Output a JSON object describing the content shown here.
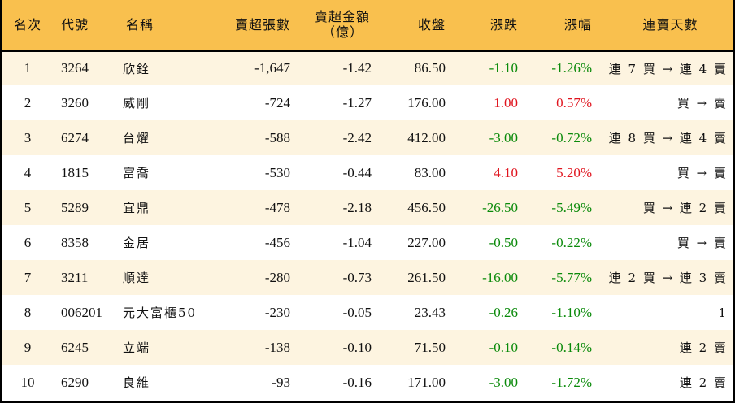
{
  "table": {
    "headers": {
      "rank": "名次",
      "code": "代號",
      "name": "名稱",
      "net_sell_shares": "賣超張數",
      "net_sell_amount_line1": "賣超金額",
      "net_sell_amount_line2": "（億）",
      "close": "收盤",
      "change": "漲跌",
      "change_pct": "漲幅",
      "streak": "連賣天數"
    },
    "rows": [
      {
        "rank": "1",
        "code": "3264",
        "name": "欣銓",
        "shares": "-1,647",
        "amount": "-1.42",
        "close": "86.50",
        "change": "-1.10",
        "pct": "-1.26%",
        "dir": "down",
        "streak": "連 7 買 → 連 4 賣"
      },
      {
        "rank": "2",
        "code": "3260",
        "name": "威剛",
        "shares": "-724",
        "amount": "-1.27",
        "close": "176.00",
        "change": "1.00",
        "pct": "0.57%",
        "dir": "up",
        "streak": "買 → 賣"
      },
      {
        "rank": "3",
        "code": "6274",
        "name": "台燿",
        "shares": "-588",
        "amount": "-2.42",
        "close": "412.00",
        "change": "-3.00",
        "pct": "-0.72%",
        "dir": "down",
        "streak": "連 8 買 → 連 4 賣"
      },
      {
        "rank": "4",
        "code": "1815",
        "name": "富喬",
        "shares": "-530",
        "amount": "-0.44",
        "close": "83.00",
        "change": "4.10",
        "pct": "5.20%",
        "dir": "up",
        "streak": "買 → 賣"
      },
      {
        "rank": "5",
        "code": "5289",
        "name": "宜鼎",
        "shares": "-478",
        "amount": "-2.18",
        "close": "456.50",
        "change": "-26.50",
        "pct": "-5.49%",
        "dir": "down",
        "streak": "買 → 連 2 賣"
      },
      {
        "rank": "6",
        "code": "8358",
        "name": "金居",
        "shares": "-456",
        "amount": "-1.04",
        "close": "227.00",
        "change": "-0.50",
        "pct": "-0.22%",
        "dir": "down",
        "streak": "買 → 賣"
      },
      {
        "rank": "7",
        "code": "3211",
        "name": "順達",
        "shares": "-280",
        "amount": "-0.73",
        "close": "261.50",
        "change": "-16.00",
        "pct": "-5.77%",
        "dir": "down",
        "streak": "連 2 買 → 連 3 賣"
      },
      {
        "rank": "8",
        "code": "006201",
        "name": "元大富櫃50",
        "shares": "-230",
        "amount": "-0.05",
        "close": "23.43",
        "change": "-0.26",
        "pct": "-1.10%",
        "dir": "down",
        "streak": "1"
      },
      {
        "rank": "9",
        "code": "6245",
        "name": "立端",
        "shares": "-138",
        "amount": "-0.10",
        "close": "71.50",
        "change": "-0.10",
        "pct": "-0.14%",
        "dir": "down",
        "streak": "連 2 賣"
      },
      {
        "rank": "10",
        "code": "6290",
        "name": "良維",
        "shares": "-93",
        "amount": "-0.16",
        "close": "171.00",
        "change": "-3.00",
        "pct": "-1.72%",
        "dir": "down",
        "streak": "連 2 賣"
      }
    ]
  },
  "colors": {
    "header_bg": "#f9c04e",
    "row_alt_bg": "#fdf4e0",
    "up": "#e0141e",
    "down": "#0a8a0a"
  }
}
